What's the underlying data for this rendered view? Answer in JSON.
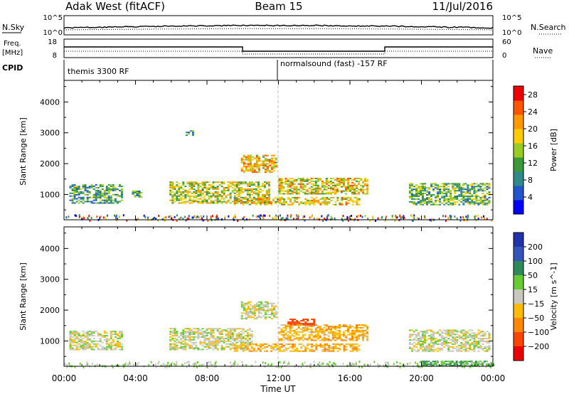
{
  "header": {
    "station": "Adak West (fitACF)",
    "beam": "Beam 15",
    "date": "11/Jul/2016"
  },
  "panels": {
    "nsky_label": "N.Sky",
    "nsky_ticks": [
      "10^5",
      "10^0"
    ],
    "nsearch_label": "N.Search",
    "nsearch_ticks": [
      "10^5",
      "10^0"
    ],
    "freq_label_1": "Freq.",
    "freq_label_2": "[MHz]",
    "freq_ticks": [
      "18",
      "8"
    ],
    "nave_label": "Nave",
    "nave_ticks": [
      "60",
      "0"
    ],
    "cpid_label": "CPID",
    "cpid_segments": [
      "themis 3300 RF",
      "normalsound (fast) -157 RF"
    ]
  },
  "chart_data": [
    {
      "type": "heatmap",
      "quantity": "Power",
      "ylabel": "Slant Range [km]",
      "xlabel": "Time UT",
      "x_range_hours": [
        0,
        24
      ],
      "x_ticks": [
        "00:00",
        "04:00",
        "08:00",
        "12:00",
        "16:00",
        "20:00",
        "00:00"
      ],
      "ylim_km": [
        180,
        4700
      ],
      "y_ticks": [
        1000,
        2000,
        3000,
        4000
      ],
      "colorbar_label": "Power [dB]",
      "colorbar_ticks": [
        4,
        8,
        12,
        16,
        20,
        24,
        28
      ],
      "colorbar_range": [
        0,
        30
      ],
      "colors": [
        "#0000ff",
        "#2255cc",
        "#2f8a8a",
        "#3a9a3a",
        "#99cc22",
        "#ffcc00",
        "#ff9900",
        "#ff5500",
        "#ee0000"
      ],
      "echo_regions": [
        {
          "t0": 0.3,
          "t1": 3.2,
          "r0": 700,
          "r1": 1300,
          "level": 0.35
        },
        {
          "t0": 3.8,
          "t1": 4.4,
          "r0": 900,
          "r1": 1100,
          "level": 0.3
        },
        {
          "t0": 5.9,
          "t1": 11.5,
          "r0": 700,
          "r1": 1400,
          "level": 0.55
        },
        {
          "t0": 9.9,
          "t1": 11.9,
          "r0": 1700,
          "r1": 2250,
          "level": 0.65
        },
        {
          "t0": 9.5,
          "t1": 16.5,
          "r0": 650,
          "r1": 900,
          "level": 0.6
        },
        {
          "t0": 12.0,
          "t1": 17.0,
          "r0": 1000,
          "r1": 1500,
          "level": 0.6
        },
        {
          "t0": 19.3,
          "t1": 23.8,
          "r0": 650,
          "r1": 1350,
          "level": 0.4
        },
        {
          "t0": 6.8,
          "t1": 7.2,
          "r0": 2900,
          "r1": 3050,
          "level": 0.3
        }
      ]
    },
    {
      "type": "heatmap",
      "quantity": "Velocity",
      "ylabel": "Slant Range [km]",
      "xlabel": "Time UT",
      "x_range_hours": [
        0,
        24
      ],
      "x_ticks": [
        "00:00",
        "04:00",
        "08:00",
        "12:00",
        "16:00",
        "20:00",
        "00:00"
      ],
      "ylim_km": [
        180,
        4700
      ],
      "y_ticks": [
        1000,
        2000,
        3000,
        4000
      ],
      "colorbar_label": "Velocity [m s^-1]",
      "colorbar_ticks": [
        200,
        100,
        50,
        15,
        -15,
        -50,
        -100,
        -200
      ],
      "colors": [
        "#2233aa",
        "#3355bb",
        "#2e8b57",
        "#66cc33",
        "#c8c8c0",
        "#ffbb00",
        "#ff8800",
        "#ff4400",
        "#ee0000"
      ],
      "echo_regions": [
        {
          "t0": 0.3,
          "t1": 3.2,
          "r0": 700,
          "r1": 1300,
          "vel": 0
        },
        {
          "t0": 5.9,
          "t1": 10.5,
          "r0": 700,
          "r1": 1400,
          "vel": 0
        },
        {
          "t0": 9.9,
          "t1": 11.9,
          "r0": 1700,
          "r1": 2250,
          "vel": 0
        },
        {
          "t0": 9.5,
          "t1": 16.5,
          "r0": 650,
          "r1": 900,
          "vel": -40
        },
        {
          "t0": 12.0,
          "t1": 17.0,
          "r0": 1000,
          "r1": 1500,
          "vel": -40
        },
        {
          "t0": 12.5,
          "t1": 14.0,
          "r0": 1500,
          "r1": 1700,
          "vel": -150
        },
        {
          "t0": 19.3,
          "t1": 23.8,
          "r0": 650,
          "r1": 1350,
          "vel": 0
        },
        {
          "t0": 20.0,
          "t1": 24.0,
          "r0": 180,
          "r1": 320,
          "vel": 40
        }
      ]
    }
  ]
}
